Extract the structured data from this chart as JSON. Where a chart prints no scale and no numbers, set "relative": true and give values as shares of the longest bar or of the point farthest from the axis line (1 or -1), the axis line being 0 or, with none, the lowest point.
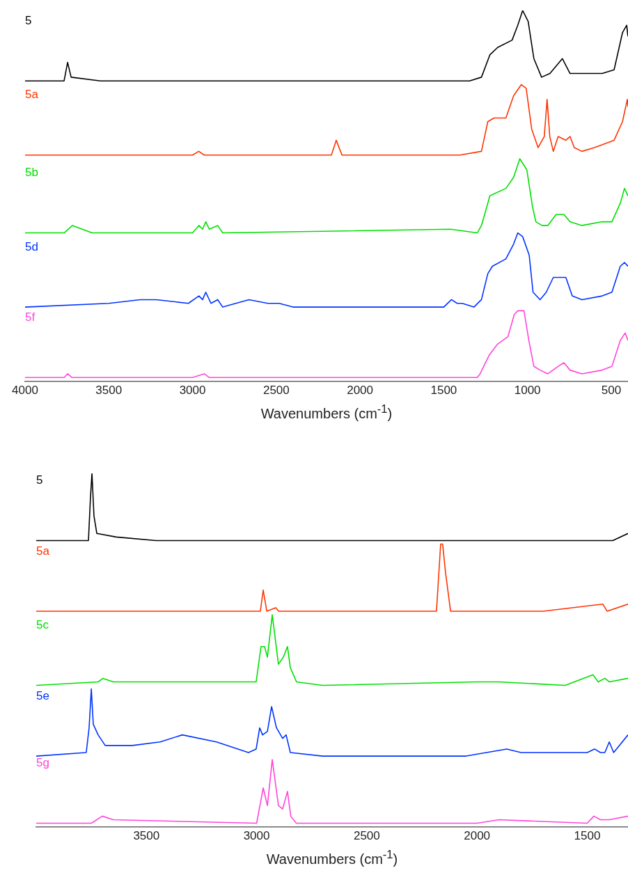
{
  "chart_data": [
    {
      "type": "line",
      "relative": true,
      "xlabel": "Wavenumbers (cm$^{-1}$)",
      "xlim": [
        4000,
        400
      ],
      "xticks": [
        4000,
        3500,
        3000,
        2500,
        2000,
        1500,
        1000,
        500
      ],
      "series": [
        {
          "name": "5",
          "color": "#000000",
          "x": [
            4000,
            3767,
            3746,
            3725,
            3550,
            1346,
            1275,
            1225,
            1179,
            1092,
            1058,
            1029,
            996,
            962,
            916,
            866,
            792,
            746,
            675,
            554,
            483,
            433,
            408,
            400
          ],
          "values": [
            0.81,
            0.81,
            0.86,
            0.82,
            0.81,
            0.81,
            0.82,
            0.88,
            0.9,
            0.92,
            0.96,
            1,
            0.97,
            0.87,
            0.82,
            0.83,
            0.87,
            0.83,
            0.83,
            0.83,
            0.84,
            0.94,
            0.96,
            0.93
          ]
        },
        {
          "name": "5a",
          "color": "#ff3300",
          "x": [
            4000,
            3658,
            3000,
            2963,
            2930,
            2171,
            2142,
            2108,
            1404,
            1275,
            1237,
            1200,
            1129,
            1083,
            1037,
            1008,
            975,
            937,
            900,
            883,
            867,
            846,
            817,
            771,
            746,
            721,
            675,
            600,
            483,
            433,
            404,
            400
          ],
          "values": [
            0.61,
            0.61,
            0.61,
            0.62,
            0.61,
            0.61,
            0.65,
            0.61,
            0.61,
            0.62,
            0.7,
            0.71,
            0.71,
            0.77,
            0.8,
            0.79,
            0.68,
            0.63,
            0.66,
            0.76,
            0.66,
            0.62,
            0.66,
            0.65,
            0.66,
            0.63,
            0.62,
            0.63,
            0.65,
            0.7,
            0.76,
            0.74
          ]
        },
        {
          "name": "5b",
          "color": "#00e000",
          "x": [
            4000,
            3767,
            3717,
            3600,
            3000,
            2962,
            2940,
            2921,
            2900,
            2850,
            2820,
            1460,
            1300,
            1275,
            1237,
            1225,
            1129,
            1083,
            1046,
            1004,
            970,
            950,
            913,
            879,
            829,
            783,
            746,
            675,
            554,
            496,
            446,
            421,
            400
          ],
          "values": [
            0.4,
            0.4,
            0.42,
            0.4,
            0.4,
            0.42,
            0.41,
            0.43,
            0.41,
            0.42,
            0.4,
            0.41,
            0.4,
            0.42,
            0.48,
            0.5,
            0.52,
            0.55,
            0.6,
            0.57,
            0.47,
            0.43,
            0.42,
            0.42,
            0.45,
            0.45,
            0.43,
            0.42,
            0.43,
            0.43,
            0.48,
            0.52,
            0.5
          ]
        },
        {
          "name": "5d",
          "color": "#0033ff",
          "x": [
            4000,
            3500,
            3313,
            3216,
            3025,
            2962,
            2940,
            2921,
            2890,
            2850,
            2820,
            2663,
            2550,
            2483,
            2400,
            1500,
            1454,
            1420,
            1390,
            1320,
            1275,
            1237,
            1210,
            1129,
            1083,
            1058,
            1029,
            990,
            967,
            925,
            888,
            846,
            771,
            733,
            675,
            554,
            496,
            446,
            421,
            400
          ],
          "values": [
            0.2,
            0.21,
            0.22,
            0.22,
            0.21,
            0.23,
            0.22,
            0.24,
            0.21,
            0.22,
            0.2,
            0.22,
            0.21,
            0.21,
            0.2,
            0.2,
            0.22,
            0.21,
            0.21,
            0.2,
            0.22,
            0.29,
            0.31,
            0.33,
            0.37,
            0.4,
            0.39,
            0.34,
            0.24,
            0.22,
            0.24,
            0.28,
            0.28,
            0.23,
            0.22,
            0.23,
            0.24,
            0.31,
            0.32,
            0.31
          ]
        },
        {
          "name": "5f",
          "color": "#ff44dd",
          "x": [
            4000,
            3767,
            3746,
            3720,
            3000,
            2930,
            2900,
            1300,
            1283,
            1229,
            1179,
            1117,
            1079,
            1058,
            1021,
            992,
            962,
            925,
            879,
            817,
            783,
            746,
            675,
            554,
            496,
            446,
            417,
            400
          ],
          "values": [
            0.01,
            0.01,
            0.02,
            0.01,
            0.01,
            0.02,
            0.01,
            0.01,
            0.02,
            0.07,
            0.1,
            0.12,
            0.18,
            0.19,
            0.19,
            0.11,
            0.04,
            0.03,
            0.02,
            0.04,
            0.05,
            0.03,
            0.02,
            0.03,
            0.04,
            0.11,
            0.13,
            0.11
          ]
        }
      ]
    },
    {
      "type": "line",
      "relative": true,
      "xlabel": "Wavenumbers (cm$^{-1}$)",
      "xlim": [
        4000,
        1315
      ],
      "xticks": [
        3500,
        3000,
        2500,
        2000,
        1500
      ],
      "series": [
        {
          "name": "5",
          "color": "#000000",
          "x": [
            4000,
            3763,
            3754,
            3747,
            3738,
            3725,
            3637,
            3457,
            2000,
            1865,
            1710,
            1384,
            1315
          ],
          "values": [
            0.81,
            0.81,
            0.93,
            1,
            0.88,
            0.83,
            0.82,
            0.81,
            0.81,
            0.81,
            0.81,
            0.81,
            0.83
          ]
        },
        {
          "name": "5a",
          "color": "#ff3300",
          "x": [
            4000,
            3675,
            3000,
            2983,
            2970,
            2954,
            2913,
            2900,
            2184,
            2165,
            2156,
            2143,
            2120,
            1874,
            1700,
            1429,
            1410,
            1315
          ],
          "values": [
            0.61,
            0.61,
            0.61,
            0.61,
            0.67,
            0.61,
            0.62,
            0.61,
            0.61,
            0.8,
            0.8,
            0.72,
            0.61,
            0.61,
            0.61,
            0.63,
            0.61,
            0.63
          ]
        },
        {
          "name": "5c",
          "color": "#00e000",
          "x": [
            4000,
            3719,
            3697,
            3650,
            3500,
            3002,
            2980,
            2964,
            2951,
            2929,
            2901,
            2879,
            2860,
            2847,
            2819,
            2700,
            2000,
            1900,
            1600,
            1474,
            1450,
            1420,
            1400,
            1315
          ],
          "values": [
            0.4,
            0.41,
            0.42,
            0.41,
            0.41,
            0.41,
            0.51,
            0.51,
            0.48,
            0.6,
            0.46,
            0.48,
            0.51,
            0.45,
            0.41,
            0.4,
            0.41,
            0.41,
            0.4,
            0.43,
            0.41,
            0.42,
            0.41,
            0.42
          ]
        },
        {
          "name": "5e",
          "color": "#0033ff",
          "x": [
            4000,
            3773,
            3760,
            3750,
            3741,
            3719,
            3687,
            3564,
            3438,
            3337,
            3182,
            3037,
            3002,
            2986,
            2973,
            2951,
            2932,
            2910,
            2882,
            2866,
            2847,
            2700,
            2050,
            1865,
            1800,
            1700,
            1500,
            1467,
            1440,
            1420,
            1400,
            1380,
            1315
          ],
          "values": [
            0.2,
            0.21,
            0.28,
            0.39,
            0.29,
            0.26,
            0.23,
            0.23,
            0.24,
            0.26,
            0.24,
            0.21,
            0.22,
            0.28,
            0.26,
            0.27,
            0.34,
            0.28,
            0.25,
            0.26,
            0.21,
            0.2,
            0.2,
            0.22,
            0.21,
            0.21,
            0.21,
            0.22,
            0.21,
            0.21,
            0.24,
            0.21,
            0.26
          ]
        },
        {
          "name": "5g",
          "color": "#ff44dd",
          "x": [
            4000,
            3750,
            3700,
            3650,
            3000,
            2970,
            2951,
            2929,
            2901,
            2882,
            2860,
            2845,
            2820,
            2000,
            1900,
            1500,
            1470,
            1440,
            1420,
            1400,
            1315
          ],
          "values": [
            0.01,
            0.01,
            0.03,
            0.02,
            0.01,
            0.11,
            0.06,
            0.19,
            0.06,
            0.05,
            0.1,
            0.03,
            0.01,
            0.01,
            0.02,
            0.01,
            0.03,
            0.02,
            0.02,
            0.02,
            0.03
          ]
        }
      ]
    }
  ]
}
